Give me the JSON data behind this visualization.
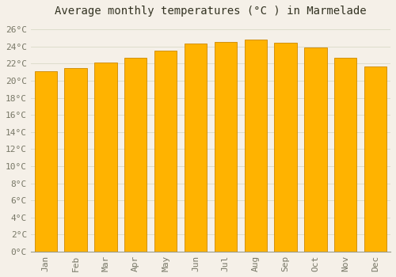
{
  "title": "Average monthly temperatures (°C ) in Marmelade",
  "months": [
    "Jan",
    "Feb",
    "Mar",
    "Apr",
    "May",
    "Jun",
    "Jul",
    "Aug",
    "Sep",
    "Oct",
    "Nov",
    "Dec"
  ],
  "values": [
    21.1,
    21.5,
    22.1,
    22.7,
    23.5,
    24.3,
    24.5,
    24.8,
    24.4,
    23.9,
    22.7,
    21.7
  ],
  "bar_color_top": "#FFC133",
  "bar_color_bottom": "#FFB700",
  "bar_edge_color": "#CC8800",
  "background_color": "#f5f0e8",
  "plot_bg_color": "#f5f0e8",
  "grid_color": "#ddddcc",
  "yticks": [
    0,
    2,
    4,
    6,
    8,
    10,
    12,
    14,
    16,
    18,
    20,
    22,
    24,
    26
  ],
  "ylim": [
    0,
    27
  ],
  "title_fontsize": 10,
  "tick_fontsize": 8,
  "tick_color": "#777766",
  "title_color": "#333322",
  "bar_width": 0.75
}
